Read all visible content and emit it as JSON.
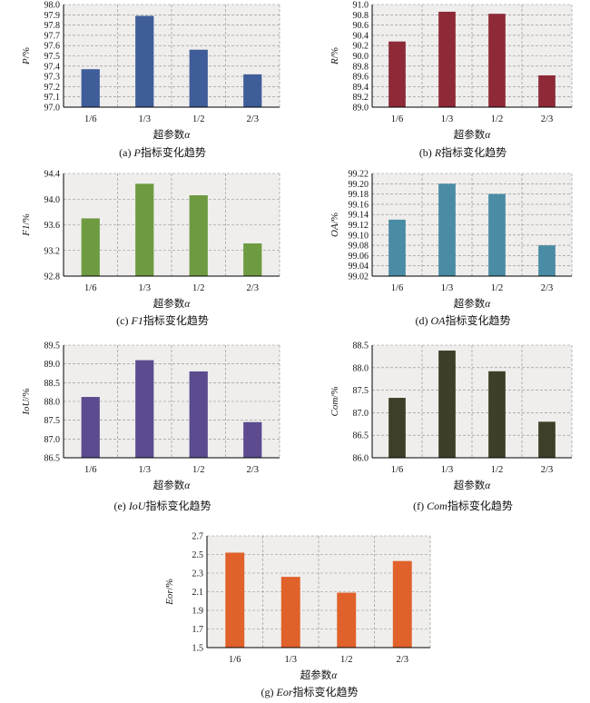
{
  "x_title_prefix": "超参数",
  "x_title_var": "α",
  "caption_suffix": "指标变化趋势",
  "chart_data": [
    {
      "id": "a",
      "type": "bar",
      "color": "#3e5d99",
      "ylabel_var": "P",
      "ylabel_unit": "/%",
      "caption_letter": "(a) ",
      "caption_var": "P",
      "categories": [
        "1/6",
        "1/3",
        "1/2",
        "2/3"
      ],
      "values": [
        97.37,
        97.89,
        97.56,
        97.32
      ],
      "ylim": [
        97.0,
        98.0
      ],
      "yticks": [
        "97.0",
        "97.1",
        "97.2",
        "97.3",
        "97.4",
        "97.5",
        "97.6",
        "97.7",
        "97.8",
        "97.9",
        "98.0"
      ],
      "grid": true
    },
    {
      "id": "b",
      "type": "bar",
      "color": "#8e2a38",
      "ylabel_var": "R",
      "ylabel_unit": "/%",
      "caption_letter": "(b) ",
      "caption_var": "R",
      "categories": [
        "1/6",
        "1/3",
        "1/2",
        "2/3"
      ],
      "values": [
        90.28,
        90.86,
        90.82,
        89.62
      ],
      "ylim": [
        89.0,
        91.0
      ],
      "yticks": [
        "89.0",
        "89.2",
        "89.4",
        "89.6",
        "89.8",
        "90.0",
        "90.2",
        "90.4",
        "90.6",
        "90.8",
        "91.0"
      ],
      "grid": true
    },
    {
      "id": "c",
      "type": "bar",
      "color": "#6e9a41",
      "ylabel_var": "F1",
      "ylabel_unit": "/%",
      "caption_letter": "(c) ",
      "caption_var": "F1",
      "categories": [
        "1/6",
        "1/3",
        "1/2",
        "2/3"
      ],
      "values": [
        93.7,
        94.24,
        94.06,
        93.31
      ],
      "ylim": [
        92.8,
        94.4
      ],
      "yticks": [
        "92.8",
        "93.2",
        "93.6",
        "94.0",
        "94.4"
      ],
      "grid": true
    },
    {
      "id": "d",
      "type": "bar",
      "color": "#4a8ca4",
      "ylabel_var": "OA",
      "ylabel_unit": "/%",
      "caption_letter": "(d) ",
      "caption_var": "OA",
      "categories": [
        "1/6",
        "1/3",
        "1/2",
        "2/3"
      ],
      "values": [
        99.13,
        99.2,
        99.18,
        99.08
      ],
      "ylim": [
        99.02,
        99.22
      ],
      "yticks": [
        "99.02",
        "99.04",
        "99.06",
        "99.08",
        "99.10",
        "99.12",
        "99.14",
        "99.16",
        "99.18",
        "99.20",
        "99.22"
      ],
      "grid": true
    },
    {
      "id": "e",
      "type": "bar",
      "color": "#5c4b8e",
      "ylabel_var": "IoU",
      "ylabel_unit": "/%",
      "caption_letter": "(e) ",
      "caption_var": "IoU",
      "categories": [
        "1/6",
        "1/3",
        "1/2",
        "2/3"
      ],
      "values": [
        88.12,
        89.1,
        88.8,
        87.45
      ],
      "ylim": [
        86.5,
        89.5
      ],
      "yticks": [
        "86.5",
        "87.0",
        "87.5",
        "88.0",
        "88.5",
        "89.0",
        "89.5"
      ],
      "grid": true
    },
    {
      "id": "f",
      "type": "bar",
      "color": "#3e3f28",
      "ylabel_var": "Com",
      "ylabel_unit": "/%",
      "caption_letter": "(f) ",
      "caption_var": "Com",
      "categories": [
        "1/6",
        "1/3",
        "1/2",
        "2/3"
      ],
      "values": [
        87.33,
        88.38,
        87.92,
        86.8
      ],
      "ylim": [
        86.0,
        88.5
      ],
      "yticks": [
        "86.0",
        "86.5",
        "87.0",
        "87.5",
        "88.0",
        "88.5"
      ],
      "grid": true
    },
    {
      "id": "g",
      "type": "bar",
      "color": "#e0612a",
      "ylabel_var": "Eor",
      "ylabel_unit": "/%",
      "caption_letter": "(g) ",
      "caption_var": "Eor",
      "categories": [
        "1/6",
        "1/3",
        "1/2",
        "2/3"
      ],
      "values": [
        2.52,
        2.26,
        2.09,
        2.43
      ],
      "ylim": [
        1.5,
        2.7
      ],
      "yticks": [
        "1.5",
        "1.7",
        "1.9",
        "2.1",
        "2.3",
        "2.5",
        "2.7"
      ],
      "grid": true
    }
  ]
}
